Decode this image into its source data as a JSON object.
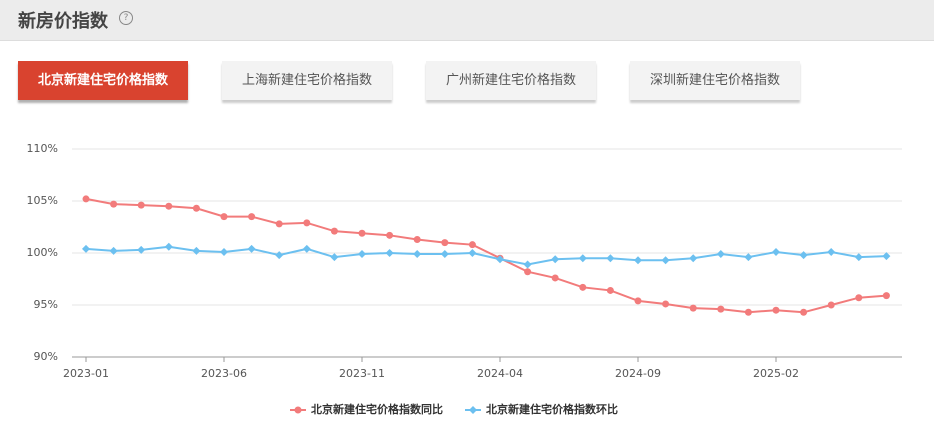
{
  "header": {
    "title": "新房价指数"
  },
  "tabs": [
    "北京新建住宅价格指数",
    "上海新建住宅价格指数",
    "广州新建住宅价格指数",
    "深圳新建住宅价格指数"
  ],
  "chart_data": {
    "type": "line",
    "categories": [
      "2023-01",
      null,
      null,
      null,
      null,
      "2023-06",
      null,
      null,
      null,
      null,
      "2023-11",
      null,
      null,
      null,
      null,
      "2024-04",
      null,
      null,
      null,
      null,
      "2024-09",
      null,
      null,
      null,
      null,
      "2025-02",
      null,
      null,
      null,
      null
    ],
    "series": [
      {
        "name": "北京新建住宅价格指数同比",
        "color": "#f27b7b",
        "marker": "circle",
        "values": [
          105.2,
          104.7,
          104.6,
          104.5,
          104.3,
          103.5,
          103.5,
          102.8,
          102.9,
          102.1,
          101.9,
          101.7,
          101.3,
          101.0,
          100.8,
          99.5,
          98.2,
          97.6,
          96.7,
          96.4,
          95.4,
          95.1,
          94.7,
          94.6,
          94.3,
          94.5,
          94.3,
          95.0,
          95.7,
          95.9
        ]
      },
      {
        "name": "北京新建住宅价格指数环比",
        "color": "#6cc0f0",
        "marker": "diamond",
        "values": [
          100.4,
          100.2,
          100.3,
          100.6,
          100.2,
          100.1,
          100.4,
          99.8,
          100.4,
          99.6,
          99.9,
          100.0,
          99.9,
          99.9,
          100.0,
          99.4,
          98.9,
          99.4,
          99.5,
          99.5,
          99.3,
          99.3,
          99.5,
          99.9,
          99.6,
          100.1,
          99.8,
          100.1,
          99.6,
          99.7
        ]
      }
    ],
    "ylim": [
      90,
      110
    ],
    "yticks": [
      {
        "value": 90,
        "label": "90%"
      },
      {
        "value": 95,
        "label": "95%"
      },
      {
        "value": 100,
        "label": "100%"
      },
      {
        "value": 105,
        "label": "105%"
      },
      {
        "value": 110,
        "label": "110%"
      }
    ],
    "grid": true,
    "legend": "bottom"
  }
}
